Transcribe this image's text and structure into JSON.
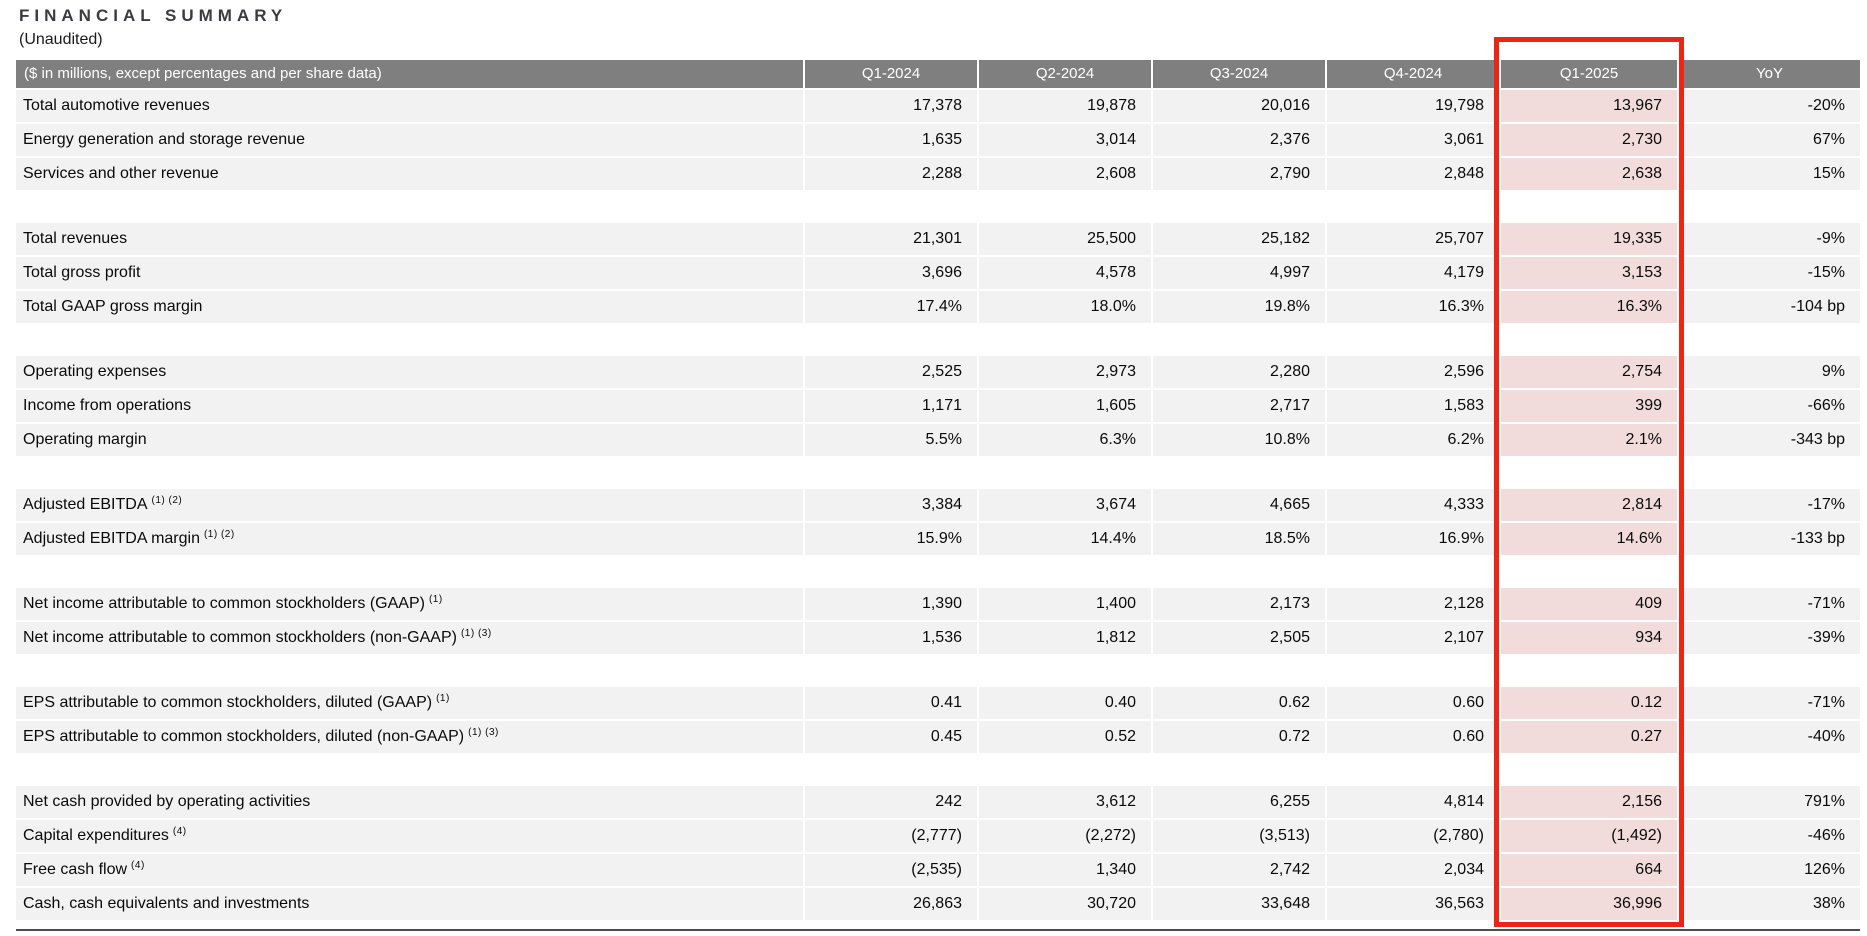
{
  "title": "FINANCIAL SUMMARY",
  "subtitle": "(Unaudited)",
  "colors": {
    "header_bg": "#7f7f7f",
    "header_text": "#ffffff",
    "row_bg": "#f2f2f2",
    "highlight_bg": "#f2dcdb",
    "highlight_border": "#ee2417",
    "bottom_rule": "#4d4d4d"
  },
  "table": {
    "label_header": "($ in millions, except percentages and per share data)",
    "columns": [
      "Q1-2024",
      "Q2-2024",
      "Q3-2024",
      "Q4-2024",
      "Q1-2025",
      "YoY"
    ],
    "highlight_column": "Q1-2025",
    "rows": [
      {
        "label": "Total automotive revenues",
        "sup": "",
        "values": [
          "17,378",
          "19,878",
          "20,016",
          "19,798",
          "13,967",
          "-20%"
        ]
      },
      {
        "label": "Energy generation and storage revenue",
        "sup": "",
        "values": [
          "1,635",
          "3,014",
          "2,376",
          "3,061",
          "2,730",
          "67%"
        ]
      },
      {
        "label": "Services and other revenue",
        "sup": "",
        "values": [
          "2,288",
          "2,608",
          "2,790",
          "2,848",
          "2,638",
          "15%"
        ]
      },
      {
        "type": "spacer"
      },
      {
        "label": "Total revenues",
        "sup": "",
        "values": [
          "21,301",
          "25,500",
          "25,182",
          "25,707",
          "19,335",
          "-9%"
        ]
      },
      {
        "label": "Total gross profit",
        "sup": "",
        "values": [
          "3,696",
          "4,578",
          "4,997",
          "4,179",
          "3,153",
          "-15%"
        ]
      },
      {
        "label": "Total GAAP gross margin",
        "sup": "",
        "values": [
          "17.4%",
          "18.0%",
          "19.8%",
          "16.3%",
          "16.3%",
          "-104 bp"
        ]
      },
      {
        "type": "spacer"
      },
      {
        "label": "Operating expenses",
        "sup": "",
        "values": [
          "2,525",
          "2,973",
          "2,280",
          "2,596",
          "2,754",
          "9%"
        ]
      },
      {
        "label": "Income from operations",
        "sup": "",
        "values": [
          "1,171",
          "1,605",
          "2,717",
          "1,583",
          "399",
          "-66%"
        ]
      },
      {
        "label": "Operating margin",
        "sup": "",
        "values": [
          "5.5%",
          "6.3%",
          "10.8%",
          "6.2%",
          "2.1%",
          "-343 bp"
        ]
      },
      {
        "type": "spacer"
      },
      {
        "label": "Adjusted EBITDA",
        "sup": "(1) (2)",
        "values": [
          "3,384",
          "3,674",
          "4,665",
          "4,333",
          "2,814",
          "-17%"
        ]
      },
      {
        "label": "Adjusted EBITDA margin",
        "sup": "(1) (2)",
        "values": [
          "15.9%",
          "14.4%",
          "18.5%",
          "16.9%",
          "14.6%",
          "-133 bp"
        ]
      },
      {
        "type": "spacer"
      },
      {
        "label": "Net income attributable to common stockholders (GAAP)",
        "sup": "(1)",
        "values": [
          "1,390",
          "1,400",
          "2,173",
          "2,128",
          "409",
          "-71%"
        ]
      },
      {
        "label": "Net income attributable to common stockholders (non-GAAP)",
        "sup": "(1) (3)",
        "values": [
          "1,536",
          "1,812",
          "2,505",
          "2,107",
          "934",
          "-39%"
        ]
      },
      {
        "type": "spacer"
      },
      {
        "label": "EPS attributable to common stockholders, diluted (GAAP)",
        "sup": "(1)",
        "values": [
          "0.41",
          "0.40",
          "0.62",
          "0.60",
          "0.12",
          "-71%"
        ]
      },
      {
        "label": "EPS attributable to common stockholders, diluted (non-GAAP)",
        "sup": "(1) (3)",
        "values": [
          "0.45",
          "0.52",
          "0.72",
          "0.60",
          "0.27",
          "-40%"
        ]
      },
      {
        "type": "spacer"
      },
      {
        "label": "Net cash provided by operating activities",
        "sup": "",
        "values": [
          "242",
          "3,612",
          "6,255",
          "4,814",
          "2,156",
          "791%"
        ]
      },
      {
        "label": "Capital expenditures",
        "sup": "(4)",
        "values": [
          "(2,777)",
          "(2,272)",
          "(3,513)",
          "(2,780)",
          "(1,492)",
          "-46%"
        ]
      },
      {
        "label": "Free cash flow",
        "sup": "(4)",
        "values": [
          "(2,535)",
          "1,340",
          "2,742",
          "2,034",
          "664",
          "126%"
        ]
      },
      {
        "label": "Cash, cash equivalents and investments",
        "sup": "",
        "values": [
          "26,863",
          "30,720",
          "33,648",
          "36,563",
          "36,996",
          "38%"
        ]
      }
    ]
  }
}
